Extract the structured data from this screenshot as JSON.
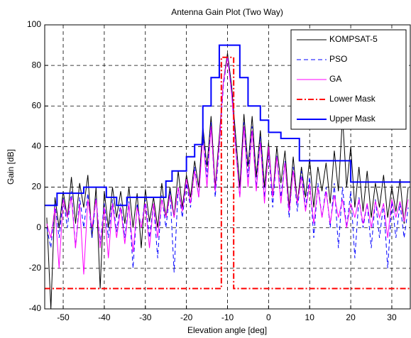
{
  "chart_data": {
    "type": "line",
    "title": "Antenna Gain Plot (Two Way)",
    "xlabel": "Elevation angle [deg]",
    "ylabel": "Gain [dB]",
    "xlim": [
      -54.5,
      34.5
    ],
    "ylim": [
      -40,
      100
    ],
    "xticks": [
      -50,
      -40,
      -30,
      -20,
      -10,
      0,
      10,
      20,
      30
    ],
    "yticks": [
      -40,
      -20,
      0,
      20,
      40,
      60,
      80,
      100
    ],
    "grid": true,
    "legend": "upper right",
    "x": [
      -54,
      -53,
      -52,
      -51,
      -50,
      -49,
      -48,
      -47,
      -46,
      -45,
      -44,
      -43,
      -42,
      -41,
      -40,
      -39,
      -38,
      -37,
      -36,
      -35,
      -34,
      -33,
      -32,
      -31,
      -30,
      -29,
      -28,
      -27,
      -26,
      -25,
      -24,
      -23,
      -22,
      -21,
      -20,
      -19,
      -18,
      -17,
      -16,
      -15,
      -14,
      -13,
      -12,
      -11,
      -10,
      -9,
      -8,
      -7,
      -6,
      -5,
      -4,
      -3,
      -2,
      -1,
      0,
      1,
      2,
      3,
      4,
      5,
      6,
      7,
      8,
      9,
      10,
      11,
      12,
      13,
      14,
      15,
      16,
      17,
      18,
      19,
      20,
      21,
      22,
      23,
      24,
      25,
      26,
      27,
      28,
      29,
      30,
      31,
      32,
      33,
      34
    ],
    "series": [
      {
        "name": "KOMPSAT-5",
        "color": "#000000",
        "linestyle": "solid",
        "linewidth": 1,
        "values": [
          5,
          -40,
          15,
          0,
          18,
          5,
          25,
          2,
          22,
          10,
          26,
          -5,
          20,
          -30,
          18,
          0,
          20,
          5,
          18,
          2,
          20,
          0,
          17,
          -10,
          19,
          3,
          15,
          0,
          22,
          5,
          20,
          5,
          28,
          10,
          26,
          15,
          33,
          20,
          50,
          30,
          55,
          20,
          45,
          72,
          86,
          70,
          45,
          20,
          56,
          30,
          55,
          25,
          48,
          20,
          42,
          15,
          40,
          22,
          38,
          10,
          35,
          12,
          30,
          15,
          34,
          10,
          30,
          18,
          32,
          12,
          38,
          18,
          55,
          20,
          40,
          10,
          30,
          8,
          28,
          5,
          22,
          10,
          26,
          5,
          20,
          8,
          24,
          2,
          20
        ]
      },
      {
        "name": "PSO",
        "color": "#0000ff",
        "linestyle": "dashed",
        "linewidth": 1,
        "values": [
          0,
          -10,
          12,
          -5,
          15,
          0,
          18,
          -10,
          15,
          0,
          17,
          -5,
          15,
          -8,
          12,
          -5,
          14,
          -2,
          12,
          -5,
          13,
          -20,
          12,
          0,
          14,
          -5,
          12,
          -15,
          16,
          0,
          18,
          -22,
          20,
          5,
          22,
          10,
          30,
          15,
          48,
          25,
          52,
          15,
          40,
          70,
          85,
          68,
          40,
          15,
          52,
          25,
          50,
          20,
          45,
          15,
          38,
          10,
          36,
          15,
          33,
          5,
          30,
          8,
          28,
          10,
          25,
          -5,
          22,
          5,
          20,
          0,
          22,
          -10,
          20,
          0,
          18,
          -15,
          15,
          0,
          12,
          -10,
          14,
          -5,
          12,
          -20,
          13,
          -5,
          12,
          -5,
          10
        ]
      },
      {
        "name": "GA",
        "color": "#ff00ff",
        "linestyle": "solid",
        "linewidth": 1,
        "values": [
          2,
          -5,
          10,
          -20,
          14,
          5,
          15,
          -10,
          12,
          -23,
          14,
          0,
          14,
          -10,
          10,
          -15,
          12,
          -5,
          10,
          -8,
          12,
          -12,
          10,
          0,
          12,
          -10,
          12,
          -5,
          14,
          5,
          16,
          5,
          20,
          8,
          24,
          12,
          28,
          15,
          45,
          20,
          50,
          18,
          42,
          72,
          84,
          66,
          38,
          15,
          50,
          20,
          48,
          18,
          42,
          12,
          40,
          15,
          35,
          12,
          32,
          8,
          28,
          12,
          25,
          8,
          22,
          2,
          20,
          5,
          18,
          2,
          16,
          5,
          14,
          0,
          12,
          5,
          14,
          2,
          12,
          0,
          13,
          5,
          12,
          -5,
          14,
          5,
          13,
          3,
          14
        ]
      },
      {
        "name": "Lower Mask",
        "color": "#ff0000",
        "linestyle": "dashdot",
        "linewidth": 2,
        "x": [
          -54.5,
          -11.5,
          -11.5,
          -8.5,
          -8.5,
          34.5
        ],
        "values": [
          -30,
          -30,
          84,
          84,
          -30,
          -30
        ]
      },
      {
        "name": "Upper Mask",
        "color": "#0000ff",
        "linestyle": "solid",
        "linewidth": 2,
        "x": [
          -54.5,
          -51.5,
          -51.5,
          -45,
          -45,
          -39.5,
          -39.5,
          -37,
          -37,
          -34.5,
          -34.5,
          -25,
          -25,
          -23.5,
          -23.5,
          -20,
          -20,
          -18,
          -18,
          -16,
          -16,
          -14,
          -14,
          -12,
          -12,
          -7,
          -7,
          -5,
          -5,
          -2,
          -2,
          0,
          0,
          3,
          3,
          7.5,
          7.5,
          20,
          20,
          34.5
        ],
        "values": [
          11,
          11,
          17,
          17,
          20,
          20,
          15,
          15,
          11,
          11,
          15,
          15,
          23,
          23,
          28,
          28,
          35,
          35,
          41,
          41,
          60,
          60,
          74,
          74,
          90,
          90,
          74,
          74,
          60,
          60,
          53,
          53,
          47,
          47,
          44,
          44,
          33,
          33,
          22.5,
          22.5
        ]
      }
    ]
  }
}
